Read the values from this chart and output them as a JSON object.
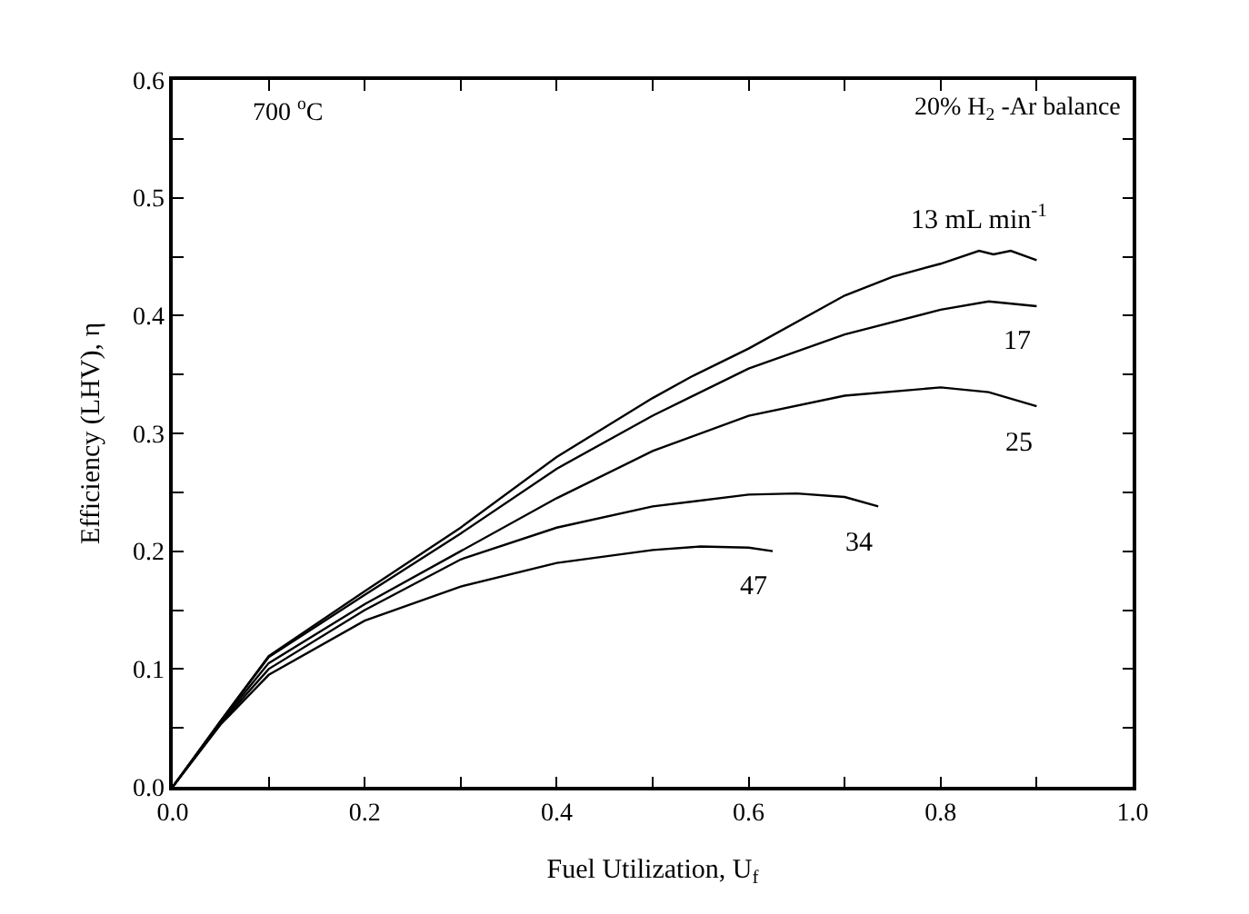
{
  "chart_data": {
    "type": "line",
    "xlabel": "Fuel Utilization, U$_{f}$",
    "ylabel": "Efficiency (LHV), η",
    "annotations": [
      "700 $^{o}$C",
      "20% H$_{2}$ -Ar balance"
    ],
    "xlim": [
      0,
      1
    ],
    "ylim": [
      0,
      0.6
    ],
    "xticks": [
      {
        "value": 0,
        "label": "0.0"
      },
      {
        "value": 0.1,
        "label": null
      },
      0.2,
      {
        "value": 0.3,
        "label": null
      },
      0.4,
      {
        "value": 0.5,
        "label": null
      },
      0.6,
      {
        "value": 0.7,
        "label": null
      },
      0.8,
      {
        "value": 0.9,
        "label": null
      },
      {
        "value": 1,
        "label": "1.0"
      }
    ],
    "yticks": [
      {
        "value": 0,
        "label": "0.0"
      },
      {
        "value": 0.05,
        "label": null
      },
      0.1,
      {
        "value": 0.15,
        "label": null
      },
      0.2,
      {
        "value": 0.25,
        "label": null
      },
      0.3,
      {
        "value": 0.35,
        "label": null
      },
      0.4,
      {
        "value": 0.45,
        "label": null
      },
      0.5,
      {
        "value": 0.55,
        "label": null
      },
      0.6
    ],
    "grid": false,
    "legend": false,
    "marker": "none",
    "line_style": "solid",
    "series": [
      {
        "name": "13 mL min$^{-1}$",
        "color": "#000000",
        "x": [
          0,
          0.05,
          0.1,
          0.2,
          0.3,
          0.4,
          0.5,
          0.54,
          0.6,
          0.7,
          0.75,
          0.8,
          0.84,
          0.855,
          0.873,
          0.9
        ],
        "values": [
          0,
          0.056,
          0.111,
          0.166,
          0.22,
          0.28,
          0.33,
          0.348,
          0.372,
          0.417,
          0.433,
          0.444,
          0.455,
          0.452,
          0.455,
          0.447
        ]
      },
      {
        "name": "17",
        "color": "#000000",
        "x": [
          0,
          0.05,
          0.1,
          0.2,
          0.3,
          0.4,
          0.5,
          0.6,
          0.7,
          0.8,
          0.85,
          0.9
        ],
        "values": [
          0,
          0.056,
          0.11,
          0.163,
          0.215,
          0.27,
          0.315,
          0.355,
          0.384,
          0.405,
          0.412,
          0.408
        ]
      },
      {
        "name": "25",
        "color": "#000000",
        "x": [
          0,
          0.05,
          0.1,
          0.2,
          0.3,
          0.4,
          0.5,
          0.6,
          0.7,
          0.8,
          0.85,
          0.9
        ],
        "values": [
          0,
          0.055,
          0.105,
          0.155,
          0.2,
          0.245,
          0.285,
          0.315,
          0.332,
          0.339,
          0.335,
          0.323
        ]
      },
      {
        "name": "34",
        "color": "#000000",
        "x": [
          0,
          0.05,
          0.1,
          0.2,
          0.3,
          0.4,
          0.5,
          0.6,
          0.65,
          0.7,
          0.735
        ],
        "values": [
          0,
          0.054,
          0.1,
          0.15,
          0.193,
          0.22,
          0.238,
          0.248,
          0.249,
          0.246,
          0.238
        ]
      },
      {
        "name": "47",
        "color": "#000000",
        "x": [
          0,
          0.05,
          0.1,
          0.2,
          0.3,
          0.4,
          0.5,
          0.55,
          0.6,
          0.625
        ],
        "values": [
          0,
          0.053,
          0.095,
          0.141,
          0.17,
          0.19,
          0.201,
          0.204,
          0.203,
          0.2
        ]
      }
    ]
  }
}
